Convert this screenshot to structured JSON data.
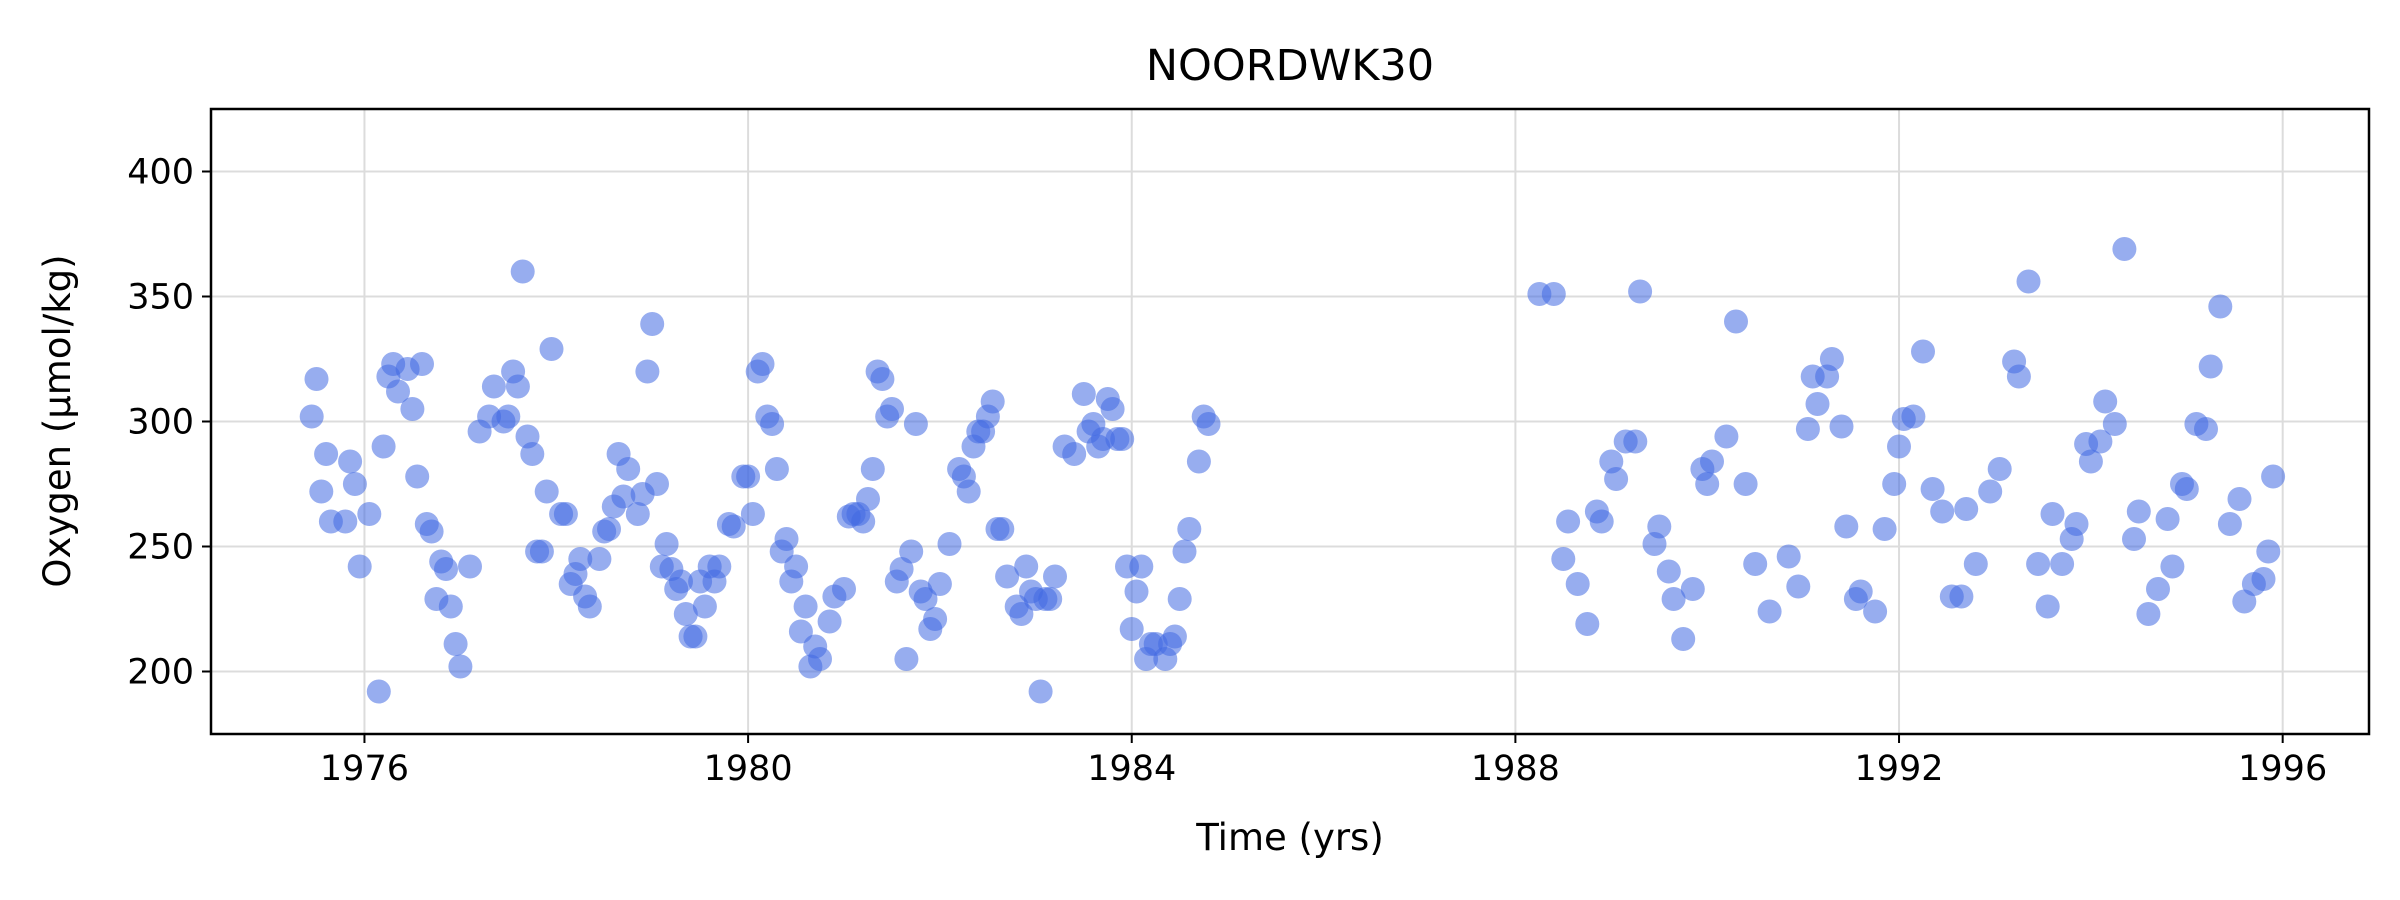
{
  "chart_data": {
    "type": "scatter",
    "title": "NOORDWK30",
    "xlabel": "Time (yrs)",
    "ylabel": "Oxygen (μmol/kg)",
    "xlim": [
      1974.4,
      1996.9
    ],
    "ylim": [
      175,
      425
    ],
    "xticks": [
      1976,
      1980,
      1984,
      1988,
      1992,
      1996
    ],
    "yticks": [
      200,
      250,
      300,
      350,
      400
    ],
    "grid": true,
    "marker_color": "#4169e1",
    "marker_opacity": 0.55,
    "series": [
      {
        "points": [
          [
            1975.45,
            302
          ],
          [
            1975.5,
            317
          ],
          [
            1975.55,
            272
          ],
          [
            1975.6,
            287
          ],
          [
            1975.65,
            260
          ],
          [
            1975.8,
            260
          ],
          [
            1975.85,
            284
          ],
          [
            1975.9,
            275
          ],
          [
            1975.95,
            242
          ],
          [
            1976.05,
            263
          ],
          [
            1976.15,
            192
          ],
          [
            1976.2,
            290
          ],
          [
            1976.25,
            318
          ],
          [
            1976.3,
            323
          ],
          [
            1976.35,
            312
          ],
          [
            1976.45,
            321
          ],
          [
            1976.5,
            305
          ],
          [
            1976.55,
            278
          ],
          [
            1976.6,
            323
          ],
          [
            1976.65,
            259
          ],
          [
            1976.7,
            256
          ],
          [
            1976.75,
            229
          ],
          [
            1976.8,
            244
          ],
          [
            1976.85,
            241
          ],
          [
            1976.9,
            226
          ],
          [
            1976.95,
            211
          ],
          [
            1977.0,
            202
          ],
          [
            1977.1,
            242
          ],
          [
            1977.2,
            296
          ],
          [
            1977.3,
            302
          ],
          [
            1977.35,
            314
          ],
          [
            1977.45,
            300
          ],
          [
            1977.5,
            302
          ],
          [
            1977.55,
            320
          ],
          [
            1977.6,
            314
          ],
          [
            1977.65,
            360
          ],
          [
            1977.7,
            294
          ],
          [
            1977.75,
            287
          ],
          [
            1977.8,
            248
          ],
          [
            1977.85,
            248
          ],
          [
            1977.9,
            272
          ],
          [
            1977.95,
            329
          ],
          [
            1978.05,
            263
          ],
          [
            1978.1,
            263
          ],
          [
            1978.15,
            235
          ],
          [
            1978.2,
            239
          ],
          [
            1978.25,
            245
          ],
          [
            1978.3,
            230
          ],
          [
            1978.35,
            226
          ],
          [
            1978.45,
            245
          ],
          [
            1978.5,
            256
          ],
          [
            1978.55,
            257
          ],
          [
            1978.6,
            266
          ],
          [
            1978.65,
            287
          ],
          [
            1978.7,
            270
          ],
          [
            1978.75,
            281
          ],
          [
            1978.85,
            263
          ],
          [
            1978.9,
            271
          ],
          [
            1978.95,
            320
          ],
          [
            1979.0,
            339
          ],
          [
            1979.05,
            275
          ],
          [
            1979.1,
            242
          ],
          [
            1979.15,
            251
          ],
          [
            1979.2,
            241
          ],
          [
            1979.25,
            233
          ],
          [
            1979.3,
            236
          ],
          [
            1979.35,
            223
          ],
          [
            1979.4,
            214
          ],
          [
            1979.45,
            214
          ],
          [
            1979.5,
            236
          ],
          [
            1979.55,
            226
          ],
          [
            1979.6,
            242
          ],
          [
            1979.65,
            236
          ],
          [
            1979.7,
            242
          ],
          [
            1979.8,
            259
          ],
          [
            1979.85,
            258
          ],
          [
            1979.95,
            278
          ],
          [
            1980.0,
            278
          ],
          [
            1980.05,
            263
          ],
          [
            1980.1,
            320
          ],
          [
            1980.15,
            323
          ],
          [
            1980.2,
            302
          ],
          [
            1980.25,
            299
          ],
          [
            1980.3,
            281
          ],
          [
            1980.35,
            248
          ],
          [
            1980.4,
            253
          ],
          [
            1980.45,
            236
          ],
          [
            1980.5,
            242
          ],
          [
            1980.55,
            216
          ],
          [
            1980.6,
            226
          ],
          [
            1980.65,
            202
          ],
          [
            1980.7,
            210
          ],
          [
            1980.75,
            205
          ],
          [
            1980.85,
            220
          ],
          [
            1980.9,
            230
          ],
          [
            1981.0,
            233
          ],
          [
            1981.05,
            262
          ],
          [
            1981.1,
            263
          ],
          [
            1981.15,
            263
          ],
          [
            1981.2,
            260
          ],
          [
            1981.25,
            269
          ],
          [
            1981.3,
            281
          ],
          [
            1981.35,
            320
          ],
          [
            1981.4,
            317
          ],
          [
            1981.45,
            302
          ],
          [
            1981.5,
            305
          ],
          [
            1981.55,
            236
          ],
          [
            1981.6,
            241
          ],
          [
            1981.65,
            205
          ],
          [
            1981.7,
            248
          ],
          [
            1981.75,
            299
          ],
          [
            1981.8,
            232
          ],
          [
            1981.85,
            229
          ],
          [
            1981.9,
            217
          ],
          [
            1981.95,
            221
          ],
          [
            1982.0,
            235
          ],
          [
            1982.1,
            251
          ],
          [
            1982.2,
            281
          ],
          [
            1982.25,
            278
          ],
          [
            1982.3,
            272
          ],
          [
            1982.35,
            290
          ],
          [
            1982.4,
            296
          ],
          [
            1982.45,
            296
          ],
          [
            1982.5,
            302
          ],
          [
            1982.55,
            308
          ],
          [
            1982.6,
            257
          ],
          [
            1982.65,
            257
          ],
          [
            1982.7,
            238
          ],
          [
            1982.8,
            226
          ],
          [
            1982.85,
            223
          ],
          [
            1982.9,
            242
          ],
          [
            1982.95,
            232
          ],
          [
            1983.0,
            229
          ],
          [
            1983.05,
            192
          ],
          [
            1983.1,
            229
          ],
          [
            1983.15,
            229
          ],
          [
            1983.2,
            238
          ],
          [
            1983.3,
            290
          ],
          [
            1983.4,
            287
          ],
          [
            1983.5,
            311
          ],
          [
            1983.55,
            296
          ],
          [
            1983.6,
            299
          ],
          [
            1983.65,
            290
          ],
          [
            1983.7,
            293
          ],
          [
            1983.75,
            309
          ],
          [
            1983.8,
            305
          ],
          [
            1983.85,
            293
          ],
          [
            1983.9,
            293
          ],
          [
            1983.95,
            242
          ],
          [
            1984.0,
            217
          ],
          [
            1984.05,
            232
          ],
          [
            1984.1,
            242
          ],
          [
            1984.15,
            205
          ],
          [
            1984.2,
            211
          ],
          [
            1984.25,
            211
          ],
          [
            1984.35,
            205
          ],
          [
            1984.4,
            211
          ],
          [
            1984.45,
            214
          ],
          [
            1984.5,
            229
          ],
          [
            1984.55,
            248
          ],
          [
            1984.6,
            257
          ],
          [
            1984.7,
            284
          ],
          [
            1984.75,
            302
          ],
          [
            1984.8,
            299
          ],
          [
            1988.25,
            351
          ],
          [
            1988.4,
            351
          ],
          [
            1988.5,
            245
          ],
          [
            1988.55,
            260
          ],
          [
            1988.65,
            235
          ],
          [
            1988.75,
            219
          ],
          [
            1988.85,
            264
          ],
          [
            1988.9,
            260
          ],
          [
            1989.0,
            284
          ],
          [
            1989.05,
            277
          ],
          [
            1989.15,
            292
          ],
          [
            1989.25,
            292
          ],
          [
            1989.3,
            352
          ],
          [
            1989.45,
            251
          ],
          [
            1989.5,
            258
          ],
          [
            1989.6,
            240
          ],
          [
            1989.65,
            229
          ],
          [
            1989.75,
            213
          ],
          [
            1989.85,
            233
          ],
          [
            1989.95,
            281
          ],
          [
            1990.0,
            275
          ],
          [
            1990.05,
            284
          ],
          [
            1990.2,
            294
          ],
          [
            1990.3,
            340
          ],
          [
            1990.4,
            275
          ],
          [
            1990.5,
            243
          ],
          [
            1990.65,
            224
          ],
          [
            1990.85,
            246
          ],
          [
            1990.95,
            234
          ],
          [
            1991.05,
            297
          ],
          [
            1991.1,
            318
          ],
          [
            1991.15,
            307
          ],
          [
            1991.25,
            318
          ],
          [
            1991.3,
            325
          ],
          [
            1991.4,
            298
          ],
          [
            1991.45,
            258
          ],
          [
            1991.55,
            229
          ],
          [
            1991.6,
            232
          ],
          [
            1991.75,
            224
          ],
          [
            1991.85,
            257
          ],
          [
            1991.95,
            275
          ],
          [
            1992.0,
            290
          ],
          [
            1992.05,
            301
          ],
          [
            1992.15,
            302
          ],
          [
            1992.25,
            328
          ],
          [
            1992.35,
            273
          ],
          [
            1992.45,
            264
          ],
          [
            1992.55,
            230
          ],
          [
            1992.65,
            230
          ],
          [
            1992.7,
            265
          ],
          [
            1992.8,
            243
          ],
          [
            1992.95,
            272
          ],
          [
            1993.05,
            281
          ],
          [
            1993.2,
            324
          ],
          [
            1993.25,
            318
          ],
          [
            1993.35,
            356
          ],
          [
            1993.45,
            243
          ],
          [
            1993.55,
            226
          ],
          [
            1993.6,
            263
          ],
          [
            1993.7,
            243
          ],
          [
            1993.8,
            253
          ],
          [
            1993.85,
            259
          ],
          [
            1993.95,
            291
          ],
          [
            1994.0,
            284
          ],
          [
            1994.1,
            292
          ],
          [
            1994.15,
            308
          ],
          [
            1994.25,
            299
          ],
          [
            1994.35,
            369
          ],
          [
            1994.45,
            253
          ],
          [
            1994.5,
            264
          ],
          [
            1994.6,
            223
          ],
          [
            1994.7,
            233
          ],
          [
            1994.8,
            261
          ],
          [
            1994.85,
            242
          ],
          [
            1994.95,
            275
          ],
          [
            1995.0,
            273
          ],
          [
            1995.1,
            299
          ],
          [
            1995.2,
            297
          ],
          [
            1995.25,
            322
          ],
          [
            1995.35,
            346
          ],
          [
            1995.45,
            259
          ],
          [
            1995.55,
            269
          ],
          [
            1995.6,
            228
          ],
          [
            1995.7,
            235
          ],
          [
            1995.8,
            237
          ],
          [
            1995.85,
            248
          ],
          [
            1995.9,
            278
          ]
        ]
      }
    ]
  }
}
